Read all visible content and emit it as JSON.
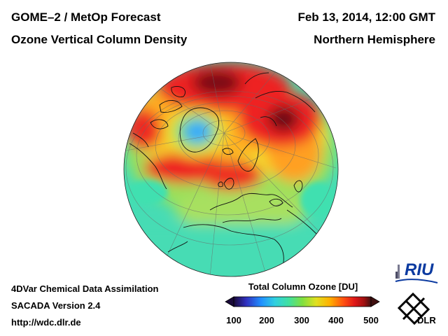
{
  "header": {
    "product": "GOME–2 / MetOp Forecast",
    "quantity": "Ozone Vertical Column Density",
    "datetime": "Feb 13, 2014, 12:00 GMT",
    "region": "Northern Hemisphere"
  },
  "footer": {
    "method": "4DVar Chemical Data Assimilation",
    "version": "SACADA Version 2.4",
    "url": "http://wdc.dlr.de"
  },
  "colorbar": {
    "title": "Total Column Ozone [DU]",
    "min": 100,
    "max": 500,
    "ticks": [
      "100",
      "200",
      "300",
      "400",
      "500"
    ],
    "colors": [
      "#1a0a3a",
      "#3030c0",
      "#2090ff",
      "#30d0e0",
      "#40e0a0",
      "#80e040",
      "#e0e020",
      "#ffb000",
      "#ff5010",
      "#e01818",
      "#a01010",
      "#401010"
    ]
  },
  "logos": {
    "riu": "RIU",
    "dlr": "DLR"
  },
  "map": {
    "projection": "orthographic",
    "hemisphere": "Northern",
    "ozone_field_colors": {
      "ocean_low": "#40d8b0",
      "mid": "#a0e060",
      "yellow": "#f0e030",
      "orange": "#ffa020",
      "red": "#ee2020",
      "dark": "#7a1018",
      "greenland_low": "#30a0ff"
    }
  }
}
